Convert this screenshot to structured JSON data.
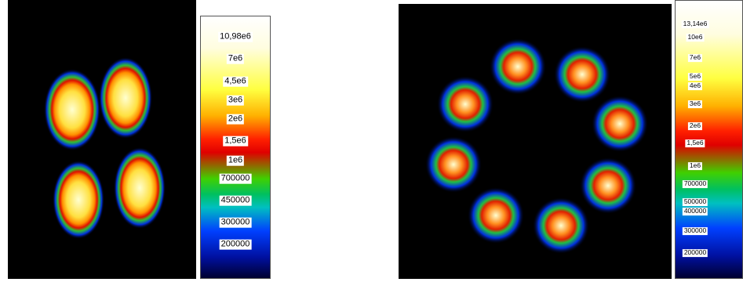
{
  "panels": [
    {
      "colorbar_labels": [
        "10,98e6",
        "7e6",
        "4,5e6",
        "3e6",
        "2e6",
        "1,5e6",
        "1e6",
        "700000",
        "450000",
        "300000",
        "200000"
      ]
    },
    {
      "colorbar_labels": [
        "13,14e6",
        "10e6",
        "7e6",
        "5e6",
        "4e6",
        "3e6",
        "2e6",
        "1,5e6",
        "1e6",
        "700000",
        "500000",
        "400000",
        "300000",
        "200000"
      ]
    }
  ]
}
